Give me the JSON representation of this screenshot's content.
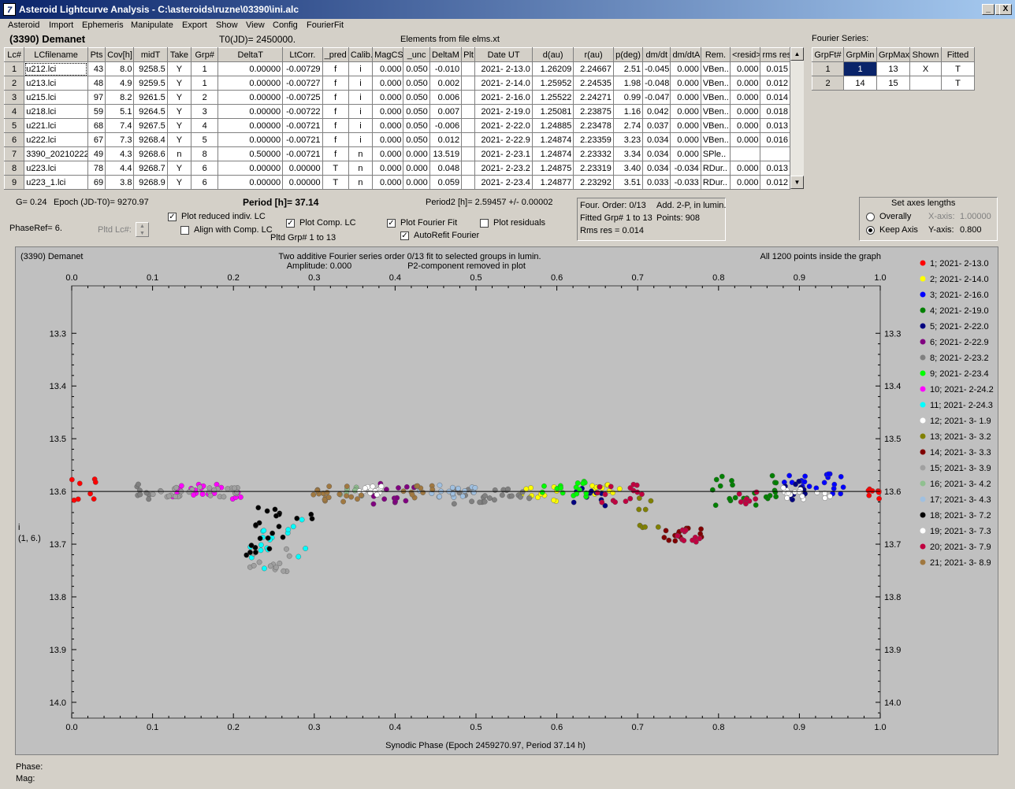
{
  "window": {
    "title": "Asteroid Lightcurve Analysis - C:\\asteroids\\ruzne\\03390\\ini.alc",
    "app_icon": "7",
    "min": "_",
    "max": "□",
    "close": "X"
  },
  "menu": [
    "Asteroid",
    "Import",
    "Ephemeris",
    "Manipulate",
    "Export",
    "Show",
    "View",
    "Config",
    "FourierFit"
  ],
  "asteroid_name": "(3390) Demanet",
  "t0": "T0(JD)= 2450000.",
  "elements_source": "Elements from file elms.xt",
  "fourier_series_label": "Fourier Series:",
  "lc_table": {
    "headers": [
      "Lc#",
      "LCfilename",
      "Pts",
      "Cov[h]",
      "midT",
      "Take",
      "Grp#",
      "DeltaT",
      "LtCorr.",
      "_pred",
      "Calib.",
      "MagCS",
      "_unc",
      "DeltaM",
      "Plt",
      "Date UT",
      "d(au)",
      "r(au)",
      "p(deg)",
      "dm/dt",
      "dm/dtA",
      "Rem.",
      "<resid>",
      "rms res"
    ],
    "rows": [
      [
        "1",
        "u212.lci",
        "43",
        "8.0",
        "9258.5",
        "Y",
        "1",
        "0.00000",
        "-0.00729",
        "f",
        "i",
        "0.000",
        "0.050",
        "-0.010",
        "",
        "2021- 2-13.0",
        "1.26209",
        "2.24667",
        "2.51",
        "-0.045",
        "0.000",
        "VBen..",
        "0.000",
        "0.015"
      ],
      [
        "2",
        "u213.lci",
        "48",
        "4.9",
        "9259.5",
        "Y",
        "1",
        "0.00000",
        "-0.00727",
        "f",
        "i",
        "0.000",
        "0.050",
        "0.002",
        "",
        "2021- 2-14.0",
        "1.25952",
        "2.24535",
        "1.98",
        "-0.048",
        "0.000",
        "VBen..",
        "0.000",
        "0.012"
      ],
      [
        "3",
        "u215.lci",
        "97",
        "8.2",
        "9261.5",
        "Y",
        "2",
        "0.00000",
        "-0.00725",
        "f",
        "i",
        "0.000",
        "0.050",
        "0.006",
        "",
        "2021- 2-16.0",
        "1.25522",
        "2.24271",
        "0.99",
        "-0.047",
        "0.000",
        "VBen..",
        "0.000",
        "0.014"
      ],
      [
        "4",
        "u218.lci",
        "59",
        "5.1",
        "9264.5",
        "Y",
        "3",
        "0.00000",
        "-0.00722",
        "f",
        "i",
        "0.000",
        "0.050",
        "0.007",
        "",
        "2021- 2-19.0",
        "1.25081",
        "2.23875",
        "1.16",
        "0.042",
        "0.000",
        "VBen..",
        "0.000",
        "0.018"
      ],
      [
        "5",
        "u221.lci",
        "68",
        "7.4",
        "9267.5",
        "Y",
        "4",
        "0.00000",
        "-0.00721",
        "f",
        "i",
        "0.000",
        "0.050",
        "-0.006",
        "",
        "2021- 2-22.0",
        "1.24885",
        "2.23478",
        "2.74",
        "0.037",
        "0.000",
        "VBen..",
        "0.000",
        "0.013"
      ],
      [
        "6",
        "u222.lci",
        "67",
        "7.3",
        "9268.4",
        "Y",
        "5",
        "0.00000",
        "-0.00721",
        "f",
        "i",
        "0.000",
        "0.050",
        "0.012",
        "",
        "2021- 2-22.9",
        "1.24874",
        "2.23359",
        "3.23",
        "0.034",
        "0.000",
        "VBen..",
        "0.000",
        "0.016"
      ],
      [
        "7",
        "3390_20210222",
        "49",
        "4.3",
        "9268.6",
        "n",
        "8",
        "0.50000",
        "-0.00721",
        "f",
        "n",
        "0.000",
        "0.000",
        "13.519",
        "",
        "2021- 2-23.1",
        "1.24874",
        "2.23332",
        "3.34",
        "0.034",
        "0.000",
        "SPle..",
        "",
        ""
      ],
      [
        "8",
        "u223.lci",
        "78",
        "4.4",
        "9268.7",
        "Y",
        "6",
        "0.00000",
        "0.00000",
        "T",
        "n",
        "0.000",
        "0.000",
        "0.048",
        "",
        "2021- 2-23.2",
        "1.24875",
        "2.23319",
        "3.40",
        "0.034",
        "-0.034",
        "RDur..",
        "0.000",
        "0.013"
      ],
      [
        "9",
        "u223_1.lci",
        "69",
        "3.8",
        "9268.9",
        "Y",
        "6",
        "0.00000",
        "0.00000",
        "T",
        "n",
        "0.000",
        "0.000",
        "0.059",
        "",
        "2021- 2-23.4",
        "1.24877",
        "2.23292",
        "3.51",
        "0.033",
        "-0.033",
        "RDur..",
        "0.000",
        "0.012"
      ]
    ]
  },
  "fourier_table": {
    "headers": [
      "GrpFt#",
      "GrpMin",
      "GrpMax",
      "Shown",
      "Fitted"
    ],
    "rows": [
      [
        "1",
        "1",
        "13",
        "X",
        "T"
      ],
      [
        "2",
        "14",
        "15",
        "",
        "T"
      ]
    ]
  },
  "info": {
    "g": "G= 0.24",
    "epoch": "Epoch (JD-T0)= 9270.97",
    "period": "Period [h]= 37.14",
    "period2": "Period2 [h]= 2.59457 +/- 0.00002",
    "phaseref": "PhaseRef= 6.",
    "pltd_lc": "Pltd Lc#:",
    "plot_reduced": "Plot reduced indiv. LC",
    "align_comp": "Align with Comp. LC",
    "plot_comp": "Plot Comp. LC",
    "pltd_grp": "Pltd Grp#  1   to   13",
    "plot_fourier": "Plot Fourier Fit",
    "autorefit": "AutoRefit Fourier",
    "plot_residuals": "Plot residuals",
    "four_order": "Four. Order:  0/13",
    "add2p": "Add. 2-P, in lumin.",
    "fitted_grp": "Fitted Grp# 1 to 13",
    "points": "Points: 908",
    "rms": "Rms res      = 0.014",
    "axes_title": "Set axes lengths",
    "overally": "Overally",
    "keep_axis": "Keep Axis",
    "xaxis_lbl": "X-axis:",
    "xaxis_val": "1.00000",
    "yaxis_lbl": "Y-axis:",
    "yaxis_val": "0.800"
  },
  "plot": {
    "name": "(3390) Demanet",
    "subtitle1": "Two additive Fourier series order 0/13 fit to selected groups in lumin.",
    "subtitle2": "Amplitude: 0.000",
    "subtitle3": "P2-component removed in plot",
    "note": "All 1200 points inside the graph",
    "ylabel1": "i",
    "ylabel2": "(1, 6.)",
    "xlabel": "Synodic Phase (Epoch 2459270.97, Period 37.14 h)",
    "bg_color": "#c0c0c0"
  },
  "footer": {
    "phase": "Phase:",
    "mag": "Mag:"
  },
  "chart_data": {
    "type": "scatter",
    "xlim": [
      0,
      1
    ],
    "ylim": [
      14.03,
      13.21
    ],
    "x_ticks": [
      "0.0",
      "0.1",
      "0.2",
      "0.3",
      "0.4",
      "0.5",
      "0.6",
      "0.7",
      "0.8",
      "0.9",
      "1.0"
    ],
    "y_ticks": [
      "13.3",
      "13.4",
      "13.5",
      "13.6",
      "13.7",
      "13.8",
      "13.9",
      "14.0"
    ],
    "fit_line_y": 13.6,
    "legend_placement": "right",
    "series": [
      {
        "name": "1; 2021- 2-13.0",
        "color": "#ff0000",
        "ranges": [
          [
            0.0,
            0.03,
            13.6,
            0.025
          ],
          [
            0.98,
            1.0,
            13.605,
            0.01
          ]
        ]
      },
      {
        "name": "2; 2021- 2-14.0",
        "color": "#ffff00",
        "ranges": [
          [
            0.55,
            0.6,
            13.605,
            0.015
          ],
          [
            0.64,
            0.68,
            13.6,
            0.015
          ]
        ]
      },
      {
        "name": "3; 2021- 2-16.0",
        "color": "#0000ff",
        "ranges": [
          [
            0.88,
            0.96,
            13.585,
            0.02
          ]
        ]
      },
      {
        "name": "4; 2021- 2-19.0",
        "color": "#008000",
        "ranges": [
          [
            0.79,
            0.88,
            13.6,
            0.03
          ]
        ]
      },
      {
        "name": "5; 2021- 2-22.0",
        "color": "#000080",
        "ranges": [
          [
            0.62,
            0.66,
            13.61,
            0.02
          ],
          [
            0.87,
            0.91,
            13.6,
            0.02
          ]
        ]
      },
      {
        "name": "6; 2021- 2-22.9",
        "color": "#800080",
        "ranges": [
          [
            0.37,
            0.43,
            13.605,
            0.02
          ]
        ]
      },
      {
        "name": "8; 2021- 2-23.2",
        "color": "#808080",
        "ranges": [
          [
            0.47,
            0.57,
            13.61,
            0.015
          ],
          [
            0.08,
            0.1,
            13.6,
            0.015
          ]
        ]
      },
      {
        "name": "9; 2021- 2-23.4",
        "color": "#00ff00",
        "ranges": [
          [
            0.58,
            0.64,
            13.595,
            0.015
          ]
        ]
      },
      {
        "name": "10; 2021- 2-24.2",
        "color": "#ff00ff",
        "ranges": [
          [
            0.12,
            0.21,
            13.6,
            0.015
          ]
        ]
      },
      {
        "name": "11; 2021- 2-24.3",
        "color": "#00ffff",
        "ranges": [
          [
            0.22,
            0.29,
            13.7,
            0.05
          ]
        ]
      },
      {
        "name": "12; 2021- 3- 1.9",
        "color": "#ffffff",
        "ranges": [
          [
            0.35,
            0.38,
            13.6,
            0.01
          ],
          [
            0.88,
            0.94,
            13.605,
            0.015
          ]
        ]
      },
      {
        "name": "13; 2021- 3- 3.2",
        "color": "#808000",
        "ranges": [
          [
            0.7,
            0.73,
            13.64,
            0.03
          ]
        ]
      },
      {
        "name": "14; 2021- 3- 3.3",
        "color": "#800000",
        "ranges": [
          [
            0.73,
            0.78,
            13.68,
            0.015
          ]
        ]
      },
      {
        "name": "15; 2021- 3- 3.9",
        "color": "#a0a0a0",
        "ranges": [
          [
            0.1,
            0.21,
            13.6,
            0.012
          ],
          [
            0.22,
            0.27,
            13.73,
            0.025
          ]
        ]
      },
      {
        "name": "16; 2021- 3- 4.2",
        "color": "#90c090",
        "ranges": [
          [
            0.33,
            0.36,
            13.6,
            0.01
          ]
        ]
      },
      {
        "name": "17; 2021- 3- 4.3",
        "color": "#a0c0e0",
        "ranges": [
          [
            0.43,
            0.5,
            13.6,
            0.012
          ]
        ]
      },
      {
        "name": "18; 2021- 3- 7.2",
        "color": "#000000",
        "ranges": [
          [
            0.21,
            0.3,
            13.68,
            0.05
          ]
        ]
      },
      {
        "name": "19; 2021- 3- 7.3",
        "color": "#ffffff",
        "ranges": [
          [
            0.35,
            0.39,
            13.6,
            0.01
          ]
        ]
      },
      {
        "name": "20; 2021- 3- 7.9",
        "color": "#c00040",
        "ranges": [
          [
            0.65,
            0.71,
            13.605,
            0.02
          ],
          [
            0.74,
            0.78,
            13.685,
            0.012
          ],
          [
            0.82,
            0.85,
            13.61,
            0.015
          ]
        ]
      },
      {
        "name": "21; 2021- 3- 8.9",
        "color": "#a07840",
        "ranges": [
          [
            0.29,
            0.36,
            13.605,
            0.015
          ],
          [
            0.41,
            0.45,
            13.6,
            0.012
          ]
        ]
      }
    ]
  }
}
